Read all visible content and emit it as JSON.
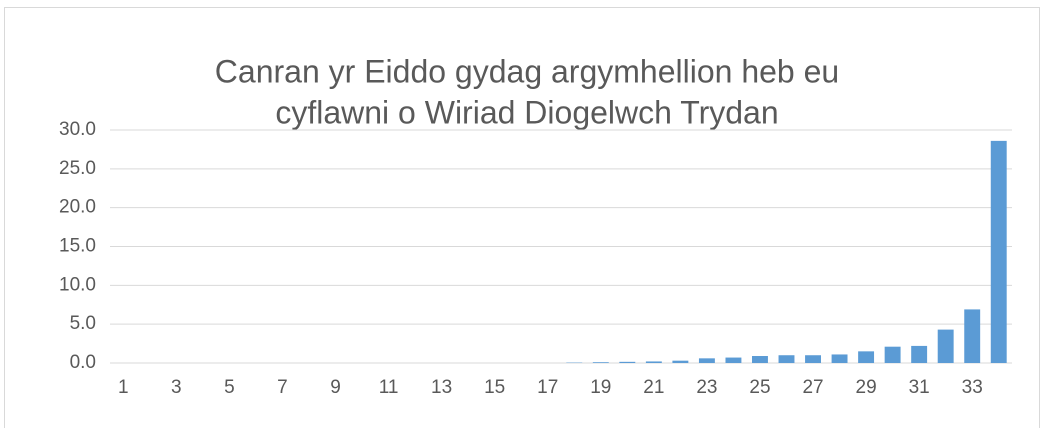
{
  "chart_data": {
    "type": "bar",
    "title": [
      "Canran yr Eiddo gydag argymhellion heb eu",
      "cyflawni o Wiriad Diogelwch Trydan"
    ],
    "categories": [
      "1",
      null,
      "3",
      null,
      "5",
      null,
      "7",
      null,
      "9",
      null,
      "11",
      null,
      "13",
      null,
      "15",
      null,
      "17",
      null,
      "19",
      null,
      "21",
      null,
      "23",
      null,
      "25",
      null,
      "27",
      null,
      "29",
      null,
      "31",
      null,
      "33",
      null
    ],
    "values": [
      0,
      0,
      0,
      0,
      0,
      0,
      0,
      0,
      0,
      0,
      0,
      0,
      0,
      0,
      0,
      0,
      0,
      0.05,
      0.1,
      0.15,
      0.2,
      0.3,
      0.6,
      0.7,
      0.9,
      1.0,
      1.0,
      1.1,
      1.5,
      2.1,
      2.2,
      4.3,
      6.9,
      28.6
    ],
    "color": "#5b9bd5",
    "ylim": [
      0,
      30
    ],
    "yticks": [
      {
        "value": 0,
        "label": "0.0"
      },
      {
        "value": 5,
        "label": "5.0"
      },
      {
        "value": 10,
        "label": "10.0"
      },
      {
        "value": 15,
        "label": "15.0"
      },
      {
        "value": 20,
        "label": "20.0"
      },
      {
        "value": 25,
        "label": "25.0"
      },
      {
        "value": 30,
        "label": "30.0"
      }
    ],
    "grid": true
  }
}
